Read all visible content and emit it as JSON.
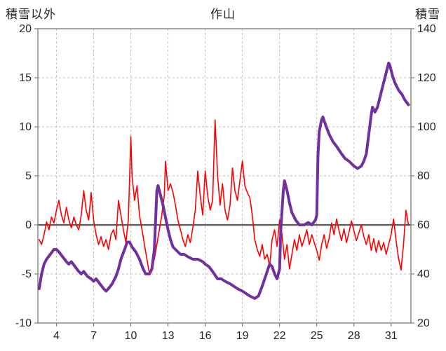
{
  "chart_data": {
    "type": "line",
    "title": "作山",
    "grid": true,
    "legend": "none",
    "left_axis": {
      "label": "積雪以外",
      "min": -10,
      "max": 20,
      "ticks": [
        20,
        15,
        10,
        5,
        0,
        -5,
        -10
      ]
    },
    "right_axis": {
      "label": "積雪",
      "min": 20,
      "max": 140,
      "ticks": [
        140,
        120,
        100,
        80,
        60,
        40,
        20
      ]
    },
    "x_axis": {
      "min": 2.5,
      "max": 32.6,
      "ticks": [
        4,
        7,
        10,
        13,
        16,
        19,
        22,
        25,
        28,
        31
      ]
    },
    "zero_line_left_value": 0,
    "colors": {
      "grid": "#bfbfbf",
      "frame": "#7f7f7f",
      "zero_line": "#595959",
      "series_left": "#ff0000",
      "series_right": "#7030a0"
    },
    "series": [
      {
        "name": "red-left-axis-series",
        "axis": "left",
        "color": "#ff0000",
        "width": 1.6,
        "points": [
          [
            2.6,
            -1.5
          ],
          [
            2.8,
            -2.0
          ],
          [
            3.0,
            -1.0
          ],
          [
            3.2,
            0.3
          ],
          [
            3.4,
            -0.5
          ],
          [
            3.6,
            0.8
          ],
          [
            3.8,
            0.2
          ],
          [
            4.0,
            1.5
          ],
          [
            4.2,
            2.5
          ],
          [
            4.4,
            1.0
          ],
          [
            4.6,
            0.2
          ],
          [
            4.8,
            1.8
          ],
          [
            5.0,
            0.5
          ],
          [
            5.2,
            -0.3
          ],
          [
            5.4,
            0.8
          ],
          [
            5.6,
            0.0
          ],
          [
            5.8,
            -0.5
          ],
          [
            6.0,
            1.0
          ],
          [
            6.2,
            3.5
          ],
          [
            6.4,
            1.5
          ],
          [
            6.6,
            0.5
          ],
          [
            6.8,
            3.3
          ],
          [
            7.0,
            0.5
          ],
          [
            7.2,
            -1.0
          ],
          [
            7.4,
            -2.0
          ],
          [
            7.6,
            -1.2
          ],
          [
            7.8,
            -2.2
          ],
          [
            8.0,
            -1.5
          ],
          [
            8.2,
            -2.5
          ],
          [
            8.4,
            -1.0
          ],
          [
            8.6,
            -0.5
          ],
          [
            8.8,
            -1.5
          ],
          [
            9.0,
            2.5
          ],
          [
            9.2,
            1.0
          ],
          [
            9.4,
            -0.5
          ],
          [
            9.6,
            -1.8
          ],
          [
            9.8,
            0.5
          ],
          [
            10.0,
            9.0
          ],
          [
            10.1,
            5.0
          ],
          [
            10.3,
            2.5
          ],
          [
            10.5,
            4.0
          ],
          [
            10.7,
            1.0
          ],
          [
            10.9,
            -0.5
          ],
          [
            11.1,
            -2.0
          ],
          [
            11.3,
            -3.5
          ],
          [
            11.5,
            -5.0
          ],
          [
            11.7,
            -4.2
          ],
          [
            11.9,
            -3.5
          ],
          [
            12.1,
            -2.0
          ],
          [
            12.3,
            -0.5
          ],
          [
            12.5,
            1.0
          ],
          [
            12.7,
            3.0
          ],
          [
            12.8,
            6.5
          ],
          [
            13.0,
            3.5
          ],
          [
            13.2,
            4.2
          ],
          [
            13.4,
            3.3
          ],
          [
            13.6,
            2.0
          ],
          [
            13.8,
            0.5
          ],
          [
            14.0,
            -0.5
          ],
          [
            14.2,
            -1.5
          ],
          [
            14.4,
            -2.2
          ],
          [
            14.6,
            -1.0
          ],
          [
            14.8,
            -1.8
          ],
          [
            15.0,
            -0.3
          ],
          [
            15.2,
            1.5
          ],
          [
            15.4,
            5.5
          ],
          [
            15.6,
            3.0
          ],
          [
            15.8,
            1.0
          ],
          [
            16.0,
            5.5
          ],
          [
            16.2,
            3.0
          ],
          [
            16.4,
            1.5
          ],
          [
            16.6,
            2.5
          ],
          [
            16.8,
            10.7
          ],
          [
            17.0,
            5.0
          ],
          [
            17.2,
            2.0
          ],
          [
            17.4,
            4.2
          ],
          [
            17.6,
            1.5
          ],
          [
            17.8,
            0.5
          ],
          [
            18.0,
            2.0
          ],
          [
            18.2,
            5.8
          ],
          [
            18.4,
            3.5
          ],
          [
            18.6,
            2.5
          ],
          [
            18.8,
            4.5
          ],
          [
            19.0,
            6.5
          ],
          [
            19.2,
            4.0
          ],
          [
            19.4,
            3.3
          ],
          [
            19.6,
            2.8
          ],
          [
            19.8,
            1.0
          ],
          [
            20.0,
            -1.5
          ],
          [
            20.2,
            -2.5
          ],
          [
            20.4,
            -3.2
          ],
          [
            20.6,
            -2.0
          ],
          [
            20.8,
            -3.5
          ],
          [
            21.0,
            -3.0
          ],
          [
            21.2,
            -4.2
          ],
          [
            21.4,
            -1.5
          ],
          [
            21.6,
            -0.5
          ],
          [
            21.8,
            -2.2
          ],
          [
            22.0,
            0.5
          ],
          [
            22.2,
            -1.0
          ],
          [
            22.4,
            -3.5
          ],
          [
            22.6,
            -2.0
          ],
          [
            22.8,
            -4.5
          ],
          [
            23.0,
            -3.0
          ],
          [
            23.2,
            -1.5
          ],
          [
            23.4,
            -2.6
          ],
          [
            23.6,
            -1.0
          ],
          [
            23.8,
            -2.2
          ],
          [
            24.0,
            -1.4
          ],
          [
            24.2,
            -0.5
          ],
          [
            24.4,
            -2.0
          ],
          [
            24.6,
            -1.0
          ],
          [
            24.8,
            -1.8
          ],
          [
            25.0,
            -2.6
          ],
          [
            25.2,
            -3.6
          ],
          [
            25.4,
            -2.0
          ],
          [
            25.6,
            -1.0
          ],
          [
            25.8,
            -2.4
          ],
          [
            26.0,
            -1.4
          ],
          [
            26.2,
            0.2
          ],
          [
            26.4,
            -1.0
          ],
          [
            26.6,
            0.6
          ],
          [
            26.8,
            -0.6
          ],
          [
            27.0,
            -1.6
          ],
          [
            27.2,
            -0.4
          ],
          [
            27.4,
            -1.8
          ],
          [
            27.6,
            -0.8
          ],
          [
            27.8,
            0.4
          ],
          [
            28.0,
            -0.6
          ],
          [
            28.2,
            -1.6
          ],
          [
            28.4,
            -0.8
          ],
          [
            28.6,
            0.0
          ],
          [
            28.8,
            -1.2
          ],
          [
            29.0,
            -2.0
          ],
          [
            29.2,
            -1.0
          ],
          [
            29.4,
            -2.6
          ],
          [
            29.6,
            -1.4
          ],
          [
            29.8,
            -2.8
          ],
          [
            30.0,
            -1.6
          ],
          [
            30.2,
            -2.6
          ],
          [
            30.4,
            -1.8
          ],
          [
            30.6,
            -3.0
          ],
          [
            30.8,
            -2.0
          ],
          [
            31.0,
            -1.0
          ],
          [
            31.2,
            0.6
          ],
          [
            31.4,
            -1.6
          ],
          [
            31.6,
            -3.4
          ],
          [
            31.8,
            -4.6
          ],
          [
            32.0,
            -2.0
          ],
          [
            32.2,
            1.5
          ],
          [
            32.4,
            0.0
          ]
        ]
      },
      {
        "name": "purple-right-axis-series",
        "axis": "right",
        "color": "#7030a0",
        "width": 4,
        "points": [
          [
            2.6,
            34
          ],
          [
            2.8,
            40
          ],
          [
            3.0,
            44
          ],
          [
            3.2,
            46
          ],
          [
            3.5,
            48
          ],
          [
            3.8,
            50
          ],
          [
            4.0,
            50
          ],
          [
            4.2,
            49
          ],
          [
            4.5,
            47
          ],
          [
            4.8,
            45
          ],
          [
            5.0,
            44
          ],
          [
            5.2,
            45
          ],
          [
            5.5,
            43
          ],
          [
            5.8,
            41
          ],
          [
            6.0,
            40
          ],
          [
            6.2,
            41
          ],
          [
            6.5,
            39
          ],
          [
            6.8,
            38
          ],
          [
            7.0,
            37
          ],
          [
            7.2,
            38
          ],
          [
            7.5,
            36
          ],
          [
            7.8,
            34
          ],
          [
            8.0,
            33
          ],
          [
            8.2,
            34
          ],
          [
            8.5,
            36
          ],
          [
            8.8,
            39
          ],
          [
            9.0,
            42
          ],
          [
            9.2,
            46
          ],
          [
            9.5,
            50
          ],
          [
            9.7,
            53
          ],
          [
            9.9,
            53
          ],
          [
            10.1,
            51
          ],
          [
            10.4,
            49
          ],
          [
            10.7,
            46
          ],
          [
            11.0,
            42
          ],
          [
            11.2,
            40
          ],
          [
            11.5,
            40
          ],
          [
            11.7,
            42
          ],
          [
            11.9,
            50
          ],
          [
            12.0,
            62
          ],
          [
            12.1,
            74
          ],
          [
            12.2,
            76
          ],
          [
            12.4,
            72
          ],
          [
            12.6,
            68
          ],
          [
            12.8,
            63
          ],
          [
            13.0,
            58
          ],
          [
            13.2,
            54
          ],
          [
            13.4,
            51
          ],
          [
            13.6,
            50
          ],
          [
            13.8,
            49
          ],
          [
            14.0,
            48
          ],
          [
            14.3,
            48
          ],
          [
            14.6,
            47
          ],
          [
            15.0,
            46
          ],
          [
            15.4,
            46
          ],
          [
            15.8,
            45
          ],
          [
            16.0,
            44
          ],
          [
            16.3,
            43
          ],
          [
            16.6,
            41
          ],
          [
            17.0,
            38
          ],
          [
            17.3,
            38
          ],
          [
            17.6,
            37
          ],
          [
            18.0,
            36
          ],
          [
            18.3,
            35
          ],
          [
            18.6,
            34
          ],
          [
            19.0,
            33
          ],
          [
            19.3,
            32
          ],
          [
            19.6,
            31
          ],
          [
            20.0,
            30
          ],
          [
            20.3,
            31
          ],
          [
            20.6,
            35
          ],
          [
            21.0,
            41
          ],
          [
            21.2,
            44
          ],
          [
            21.4,
            43
          ],
          [
            21.6,
            40
          ],
          [
            21.8,
            38
          ],
          [
            22.0,
            42
          ],
          [
            22.1,
            58
          ],
          [
            22.3,
            74
          ],
          [
            22.4,
            78
          ],
          [
            22.6,
            74
          ],
          [
            22.8,
            69
          ],
          [
            23.0,
            65
          ],
          [
            23.3,
            62
          ],
          [
            23.6,
            60
          ],
          [
            24.0,
            60
          ],
          [
            24.3,
            61
          ],
          [
            24.6,
            60
          ],
          [
            24.9,
            62
          ],
          [
            25.0,
            64
          ],
          [
            25.1,
            88
          ],
          [
            25.2,
            98
          ],
          [
            25.4,
            103
          ],
          [
            25.5,
            104
          ],
          [
            25.7,
            101
          ],
          [
            26.0,
            97
          ],
          [
            26.3,
            94
          ],
          [
            26.6,
            92
          ],
          [
            27.0,
            89
          ],
          [
            27.3,
            87
          ],
          [
            27.6,
            86
          ],
          [
            28.0,
            84
          ],
          [
            28.3,
            83
          ],
          [
            28.6,
            84
          ],
          [
            28.8,
            86
          ],
          [
            29.0,
            89
          ],
          [
            29.2,
            97
          ],
          [
            29.4,
            105
          ],
          [
            29.5,
            108
          ],
          [
            29.7,
            106
          ],
          [
            29.9,
            108
          ],
          [
            30.1,
            112
          ],
          [
            30.3,
            116
          ],
          [
            30.5,
            120
          ],
          [
            30.7,
            124
          ],
          [
            30.8,
            126
          ],
          [
            30.9,
            125
          ],
          [
            31.1,
            121
          ],
          [
            31.3,
            118
          ],
          [
            31.6,
            115
          ],
          [
            31.9,
            113
          ],
          [
            32.1,
            111
          ],
          [
            32.4,
            109
          ]
        ]
      }
    ]
  }
}
